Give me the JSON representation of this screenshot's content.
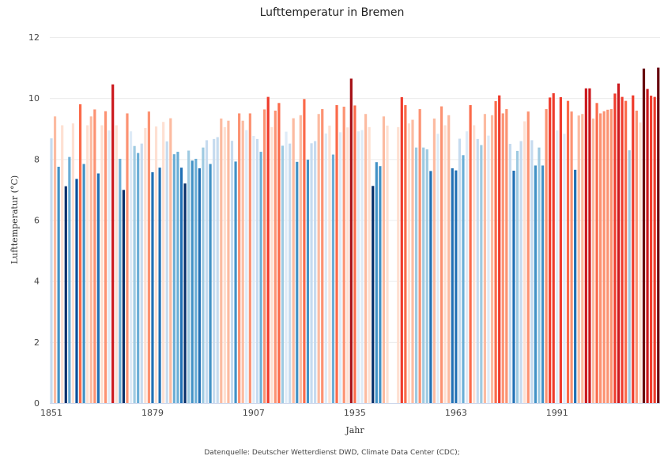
{
  "chart_data": {
    "type": "bar",
    "title": "Lufttemperatur in Bremen",
    "xlabel": "Jahr",
    "ylabel": "Lufttemperatur (°C)",
    "ylim": [
      0,
      12
    ],
    "yticks": [
      "0",
      "2",
      "4",
      "6",
      "8",
      "10",
      "12"
    ],
    "xticks": [
      "1851",
      "1879",
      "1907",
      "1935",
      "1963",
      "1991"
    ],
    "grid": true,
    "x_start": 1851,
    "values": [
      8.68,
      9.4,
      7.75,
      9.11,
      7.11,
      8.07,
      9.17,
      7.35,
      9.8,
      7.84,
      9.11,
      9.4,
      9.63,
      7.53,
      9.11,
      9.57,
      8.94,
      10.45,
      9.11,
      8.01,
      6.99,
      9.5,
      8.91,
      8.43,
      8.2,
      8.51,
      9.02,
      9.56,
      7.57,
      9.07,
      7.72,
      9.22,
      8.58,
      9.34,
      8.16,
      8.24,
      7.72,
      7.2,
      8.28,
      7.95,
      8.01,
      7.7,
      8.38,
      8.62,
      7.84,
      8.66,
      8.72,
      9.33,
      9.05,
      9.26,
      8.6,
      7.92,
      9.5,
      9.26,
      8.95,
      9.5,
      8.76,
      8.66,
      8.24,
      9.63,
      10.04,
      9.05,
      9.59,
      9.84,
      8.44,
      8.9,
      8.51,
      9.34,
      7.91,
      9.44,
      9.97,
      7.98,
      8.52,
      8.59,
      9.48,
      9.64,
      8.84,
      9.1,
      8.15,
      9.77,
      8.88,
      9.72,
      9.04,
      10.64,
      9.76,
      8.91,
      8.95,
      9.48,
      9.05,
      7.12,
      7.9,
      7.77,
      9.4,
      9.1,
      null,
      null,
      9.05,
      10.03,
      9.77,
      9.17,
      9.29,
      8.38,
      9.64,
      8.38,
      8.32,
      7.61,
      9.33,
      8.83,
      9.73,
      9.11,
      9.44,
      7.7,
      7.63,
      8.67,
      8.13,
      8.91,
      9.77,
      9.11,
      8.66,
      8.46,
      9.48,
      8.77,
      9.44,
      9.9,
      10.09,
      9.5,
      9.64,
      8.5,
      7.62,
      8.27,
      8.59,
      9.24,
      9.56,
      8.62,
      7.79,
      8.38,
      7.79,
      9.64,
      10.02,
      10.16,
      8.94,
      10.03,
      8.83,
      9.91,
      9.56,
      7.65,
      9.43,
      9.48,
      10.32,
      10.32,
      9.33,
      9.84,
      9.5,
      9.57,
      9.62,
      9.64,
      10.15,
      10.48,
      10.04,
      9.91,
      8.29,
      10.09,
      9.59,
      9.2,
      10.97,
      10.3,
      10.08,
      10.04,
      11.0
    ],
    "color_scale": [
      "#08306b",
      "#08519c",
      "#2171b5",
      "#4292c6",
      "#6baed6",
      "#9ecae1",
      "#c6dbef",
      "#deebf7",
      "#fee0d2",
      "#fcbba1",
      "#fc9272",
      "#fb6a4a",
      "#ef3b2c",
      "#cb181d",
      "#a50f15",
      "#67000d"
    ],
    "color_range": [
      7,
      11
    ],
    "source": "Datenquelle: Deutscher Wetterdienst DWD, Climate Data Center (CDC);"
  }
}
